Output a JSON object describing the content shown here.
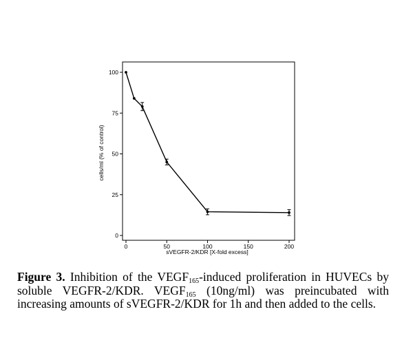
{
  "chart_data": {
    "type": "line",
    "xlabel": "sVEGFR-2/KDR [X-fold excess]",
    "ylabel": "cells/ml (% of control)",
    "xlim": [
      0,
      200
    ],
    "ylim": [
      0,
      100
    ],
    "x_ticks": [
      0,
      50,
      100,
      150,
      200
    ],
    "y_ticks": [
      0,
      25,
      50,
      75,
      100
    ],
    "grid": false,
    "series": [
      {
        "x": [
          0,
          10,
          20,
          50,
          100,
          200
        ],
        "y": [
          100,
          84,
          79,
          45,
          14.5,
          14
        ],
        "error": [
          0,
          0,
          2.5,
          1.8,
          1.8,
          1.8
        ]
      }
    ]
  },
  "caption": {
    "label": "Figure 3.",
    "text_1": " Inhibition of the VEGF",
    "sub_1": "165",
    "text_2": "-induced proliferation in HUVECs by soluble VEGFR-2/KDR. VEGF",
    "sub_2": "165",
    "text_3": " (10ng/ml) was preincubated with increasing amounts of sVEGFR-2/KDR for 1h and then added to the cells."
  }
}
